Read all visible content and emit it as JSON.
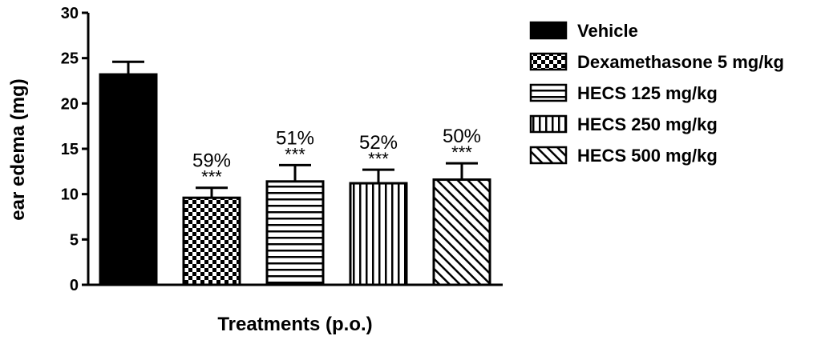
{
  "chart_data": {
    "type": "bar",
    "categories": [
      "Vehicle",
      "Dexamethasone 5 mg/kg",
      "HECS 125 mg/kg",
      "HECS 250 mg/kg",
      "HECS 500 mg/kg"
    ],
    "values": [
      23.2,
      9.6,
      11.4,
      11.2,
      11.6
    ],
    "errors": [
      1.4,
      1.1,
      1.8,
      1.5,
      1.8
    ],
    "patterns": [
      "solid",
      "checker",
      "horizontal",
      "vertical",
      "diagonal"
    ],
    "percent_labels": [
      "",
      "59%",
      "51%",
      "52%",
      "50%"
    ],
    "significance": [
      "",
      "***",
      "***",
      "***",
      "***"
    ],
    "ylim": [
      0,
      30
    ],
    "yticks": [
      "0",
      "5",
      "10",
      "15",
      "20",
      "25",
      "30"
    ],
    "ylabel": "ear edema (mg)",
    "xlabel": "Treatments (p.o.)",
    "title": "",
    "legend_position": "right",
    "colors": {
      "bar": "#000000",
      "fill": "#ffffff"
    }
  }
}
